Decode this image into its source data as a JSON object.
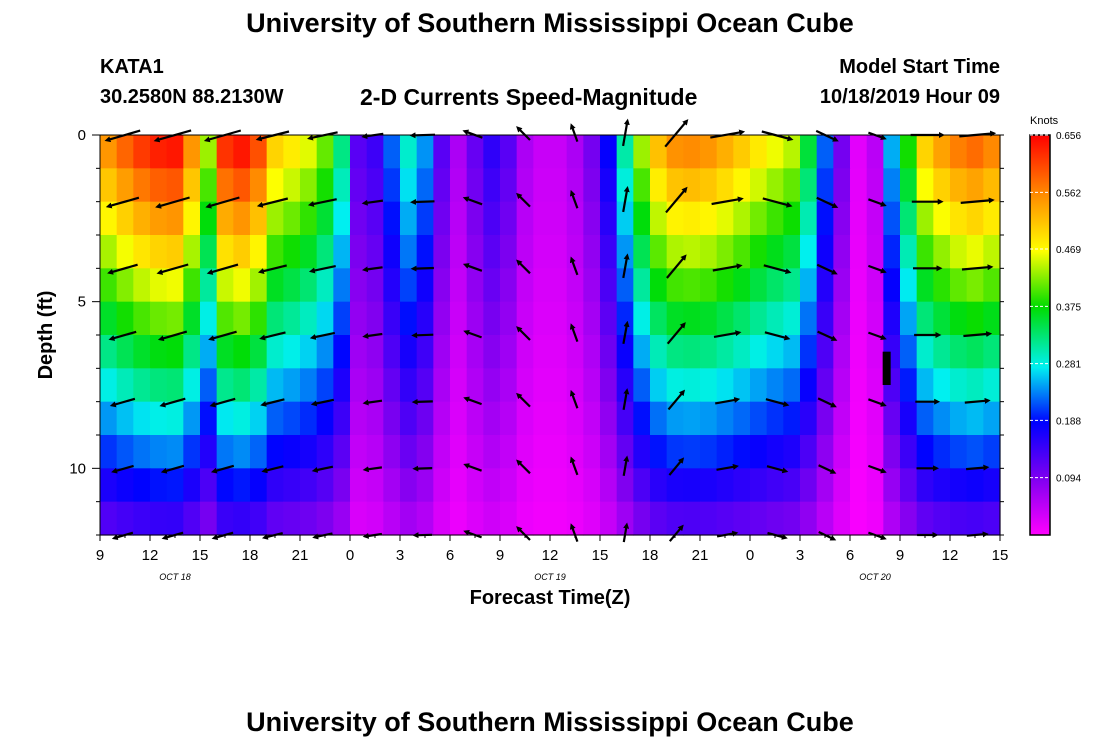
{
  "header": {
    "title": "University of Southern Mississippi Ocean Cube",
    "station": "KATA1",
    "coords": "30.2580N 88.2130W",
    "subtitle": "2-D Currents Speed-Magnitude",
    "model_start_label": "Model Start Time",
    "model_start_value": "10/18/2019 Hour 09"
  },
  "footer": {
    "title": "University of Southern Mississippi Ocean Cube"
  },
  "chart_data": {
    "type": "heatmap",
    "xlabel": "Forecast Time(Z)",
    "ylabel": "Depth (ft)",
    "x_range_hours": [
      0,
      54
    ],
    "x_ticks": [
      "9",
      "12",
      "15",
      "18",
      "21",
      "0",
      "3",
      "6",
      "9",
      "12",
      "15",
      "18",
      "21",
      "0",
      "3",
      "6",
      "9",
      "12",
      "15"
    ],
    "date_labels": [
      {
        "text": "OCT 18",
        "at_tick": 1.5
      },
      {
        "text": "OCT 19",
        "at_tick": 9.0
      },
      {
        "text": "OCT 20",
        "at_tick": 15.5
      }
    ],
    "y_ticks": [
      0,
      5,
      10
    ],
    "y_range": [
      0,
      12
    ],
    "colorbar": {
      "unit": "Knots",
      "min": 0,
      "max": 0.656,
      "ticks": [
        "0.656",
        "0.562",
        "0.469",
        "0.375",
        "0.281",
        "0.188",
        "0.094"
      ],
      "tick_values": [
        0.656,
        0.562,
        0.469,
        0.375,
        0.281,
        0.188,
        0.094
      ]
    },
    "depths_ft": [
      0,
      1,
      2,
      3,
      4,
      5,
      6,
      7,
      8,
      9,
      10,
      11
    ],
    "speed_profile_surface": [
      [
        0,
        0.53
      ],
      [
        1,
        0.57
      ],
      [
        3,
        0.63
      ],
      [
        4.5,
        0.64
      ],
      [
        5.5,
        0.55
      ],
      [
        6.5,
        0.43
      ],
      [
        7.5,
        0.62
      ],
      [
        8.5,
        0.64
      ],
      [
        9.5,
        0.6
      ],
      [
        10.5,
        0.5
      ],
      [
        12,
        0.47
      ],
      [
        13,
        0.44
      ],
      [
        14,
        0.38
      ],
      [
        14.5,
        0.32
      ],
      [
        15,
        0.2
      ],
      [
        15.5,
        0.12
      ],
      [
        16.5,
        0.14
      ],
      [
        17.5,
        0.22
      ],
      [
        18.5,
        0.29
      ],
      [
        19.5,
        0.24
      ],
      [
        20.5,
        0.12
      ],
      [
        21.5,
        0.06
      ],
      [
        22.5,
        0.11
      ],
      [
        23.5,
        0.15
      ],
      [
        24.5,
        0.12
      ],
      [
        25.5,
        0.06
      ],
      [
        26.5,
        0.04
      ],
      [
        27.5,
        0.04
      ],
      [
        29,
        0.07
      ],
      [
        30,
        0.13
      ],
      [
        31,
        0.23
      ],
      [
        32,
        0.38
      ],
      [
        33,
        0.48
      ],
      [
        34,
        0.55
      ],
      [
        36,
        0.56
      ],
      [
        38,
        0.52
      ],
      [
        40,
        0.47
      ],
      [
        41.5,
        0.44
      ],
      [
        42.5,
        0.35
      ],
      [
        43.5,
        0.22
      ],
      [
        44.5,
        0.1
      ],
      [
        45.5,
        0.02
      ],
      [
        46.5,
        0.05
      ],
      [
        47.5,
        0.25
      ],
      [
        48.5,
        0.38
      ],
      [
        49.5,
        0.5
      ],
      [
        51,
        0.56
      ],
      [
        52.5,
        0.58
      ],
      [
        54,
        0.55
      ]
    ],
    "depth_decay_per_ft": 0.07,
    "vector_times_hours": [
      1.5,
      4.5,
      7.5,
      10.5,
      13.5,
      16.5,
      19.5,
      22.5,
      25.5,
      28.5,
      31.5,
      34.5,
      37.5,
      40.5,
      43.5,
      46.5,
      49.5,
      52.5
    ],
    "vector_depths_ft": [
      0,
      2,
      4,
      6,
      8,
      10,
      12
    ],
    "vector_direction_deg": [
      254,
      254,
      254,
      256,
      258,
      262,
      268,
      290,
      315,
      340,
      10,
      40,
      80,
      105,
      115,
      110,
      90,
      85
    ],
    "scale_marker": {
      "time_hours": 47.2,
      "depth_ft": 7.0,
      "length_ft": 1.0
    }
  }
}
